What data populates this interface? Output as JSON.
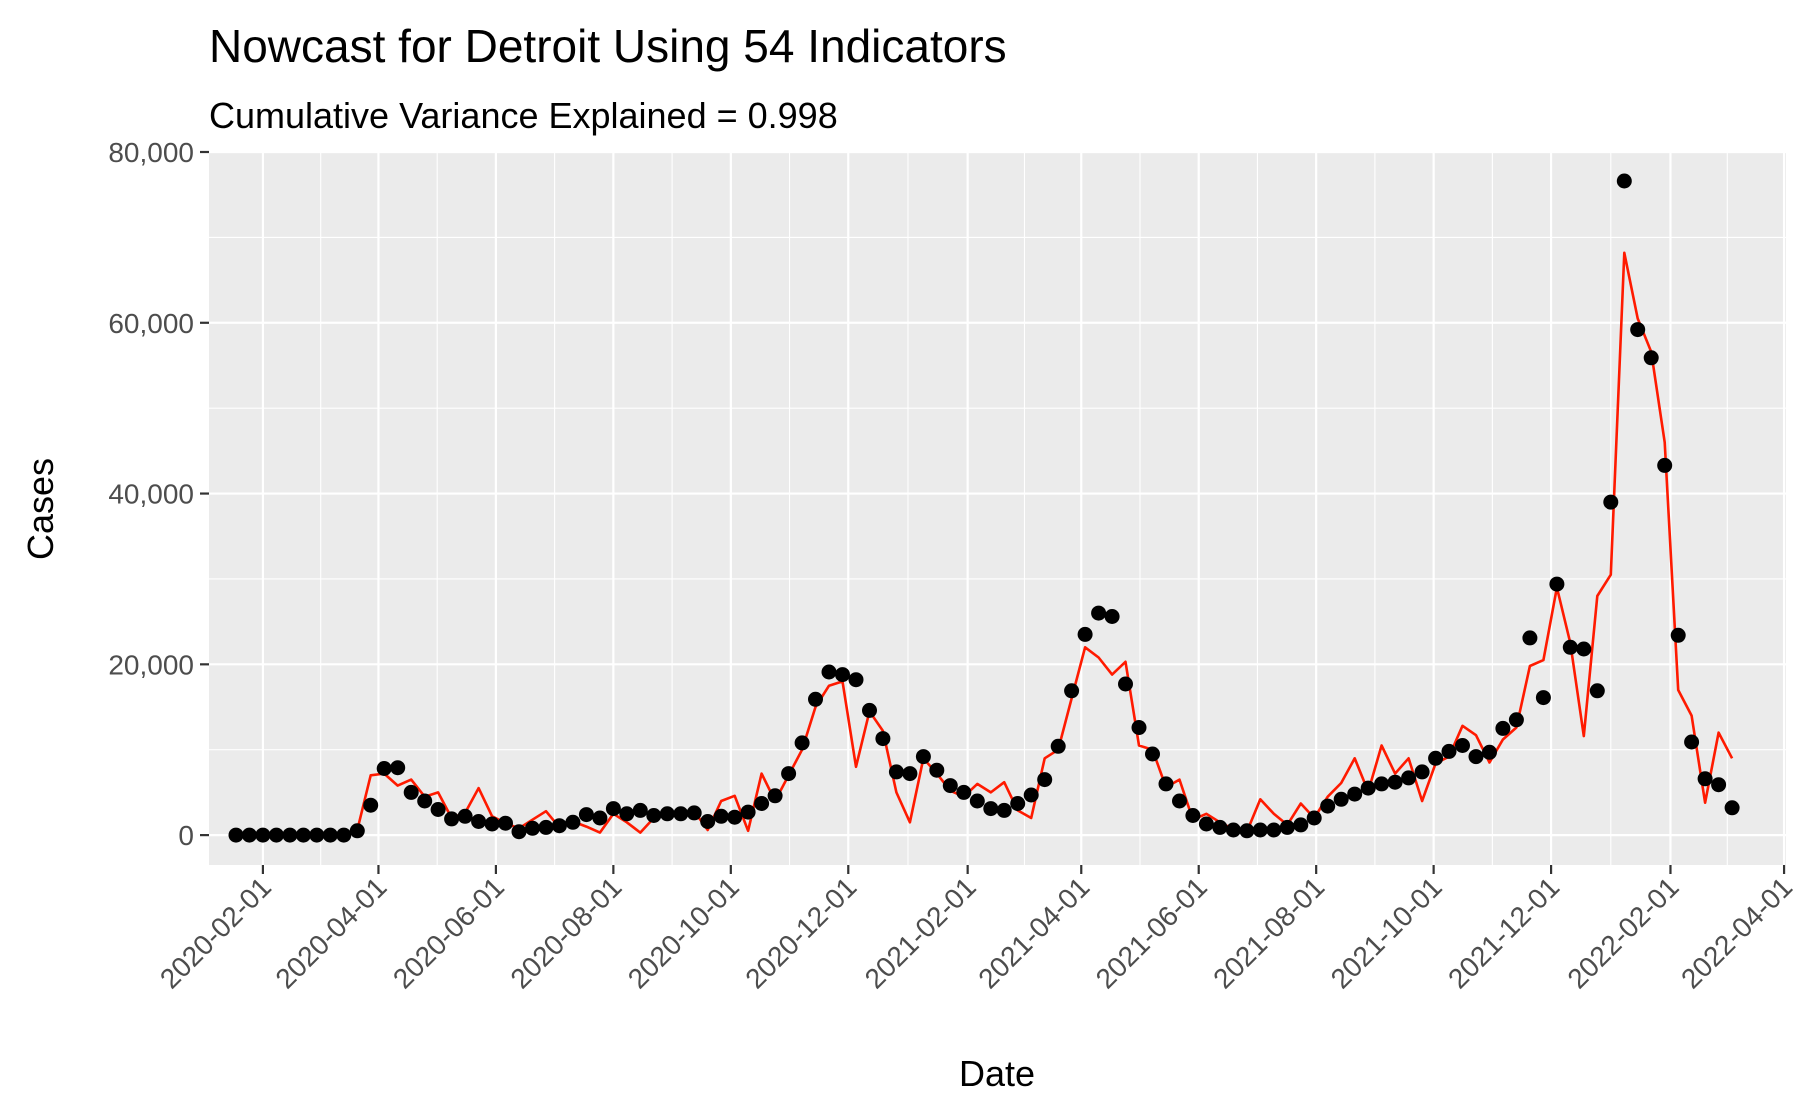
{
  "chart_data": {
    "type": "line",
    "title": "Nowcast for Detroit Using 54 Indicators",
    "subtitle": "Cumulative Variance Explained = 0.998",
    "xlabel": "Date",
    "ylabel": "Cases",
    "ylim": [
      -3500,
      80000
    ],
    "xlim": [
      "2020-01-04",
      "2022-04-02"
    ],
    "y_ticks": [
      0,
      20000,
      40000,
      60000,
      80000
    ],
    "y_tick_labels": [
      "0",
      "20,000",
      "40,000",
      "60,000",
      "80,000"
    ],
    "x_tick_labels": [
      "2020-02-01",
      "2020-04-01",
      "2020-06-01",
      "2020-08-01",
      "2020-10-01",
      "2020-12-01",
      "2021-02-01",
      "2021-04-01",
      "2021-06-01",
      "2021-08-01",
      "2021-10-01",
      "2021-12-01",
      "2022-02-01",
      "2022-04-01"
    ],
    "grid": true,
    "x_start": "2020-01-18",
    "x_step_days": 7,
    "series": [
      {
        "name": "",
        "style": "points",
        "color": "#000000",
        "values": [
          0,
          0,
          0,
          0,
          0,
          0,
          0,
          0,
          0,
          500,
          3500,
          7800,
          7900,
          5000,
          4000,
          3000,
          1900,
          2200,
          1600,
          1300,
          1400,
          400,
          800,
          900,
          1100,
          1500,
          2400,
          2000,
          3100,
          2500,
          2900,
          2300,
          2500,
          2500,
          2600,
          1600,
          2200,
          2100,
          2700,
          3700,
          4600,
          7200,
          10800,
          15900,
          19100,
          18800,
          18200,
          14600,
          11300,
          7400,
          7200,
          9200,
          7600,
          5800,
          5000,
          4000,
          3100,
          2900,
          3700,
          4700,
          6500,
          10400,
          16900,
          23500,
          26000,
          25600,
          17700,
          12600,
          9500,
          6000,
          4000,
          2300,
          1300,
          900,
          600,
          500,
          600,
          600,
          900,
          1200,
          2000,
          3400,
          4200,
          4800,
          5500,
          6000,
          6200,
          6700,
          7400,
          9000,
          9800,
          10500,
          9200,
          9700,
          12500,
          13500,
          23100,
          16100,
          29400,
          22000,
          21800,
          16900,
          39000,
          76600,
          59200,
          55900,
          43300,
          23400,
          10900,
          6600,
          5900,
          3200
        ]
      },
      {
        "name": "",
        "style": "line",
        "color": "#ff1a00",
        "values": [
          0,
          0,
          0,
          0,
          0,
          0,
          0,
          0,
          0,
          600,
          7000,
          7200,
          5800,
          6500,
          4500,
          5000,
          2000,
          2600,
          5500,
          2200,
          1400,
          800,
          1800,
          2800,
          900,
          1600,
          1000,
          300,
          2500,
          1500,
          300,
          2000,
          2700,
          2600,
          2800,
          600,
          4000,
          4600,
          500,
          7200,
          4000,
          7000,
          10000,
          15000,
          17500,
          18000,
          8000,
          14500,
          12200,
          5000,
          1500,
          9000,
          7200,
          5200,
          4500,
          6000,
          5000,
          6200,
          2900,
          2000,
          9000,
          10000,
          16000,
          22000,
          20800,
          18800,
          20300,
          10500,
          10000,
          5600,
          6500,
          1800,
          2500,
          1500,
          700,
          400,
          4200,
          2500,
          1200,
          3700,
          2000,
          4500,
          6100,
          9000,
          5100,
          10500,
          7200,
          9000,
          4000,
          8400,
          9200,
          12800,
          11700,
          8500,
          11200,
          12600,
          19800,
          20500,
          29000,
          22500,
          11600,
          28000,
          30500,
          68200,
          60500,
          56600,
          46000,
          17000,
          14000,
          3800,
          12000,
          9000
        ]
      }
    ]
  }
}
